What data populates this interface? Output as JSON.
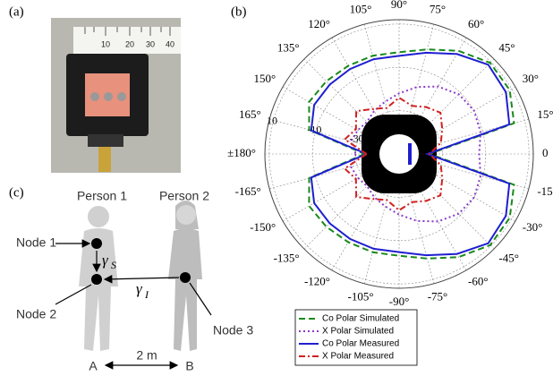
{
  "panel_labels": [
    "(a)",
    "(b)",
    "(c)"
  ],
  "photo": {
    "ruler_labels": [
      "10",
      "20",
      "30",
      "40"
    ]
  },
  "chart_data": {
    "type": "polar",
    "theta": [
      -180,
      -165,
      -150,
      -135,
      -120,
      -105,
      -90,
      -75,
      -60,
      -45,
      -30,
      -15,
      0,
      15,
      30,
      45,
      60,
      75,
      90,
      105,
      120,
      135,
      150,
      165,
      180
    ],
    "rlim": [
      -50,
      12
    ],
    "rticks": [
      -30,
      -10,
      10
    ],
    "thetaticks": [
      0,
      {
        "value": 15,
        "label": "15°"
      },
      {
        "value": 30,
        "label": "30°"
      },
      {
        "value": 45,
        "label": "45°"
      },
      {
        "value": 60,
        "label": "60°"
      },
      {
        "value": 75,
        "label": "75°"
      },
      {
        "value": 90,
        "label": "90°"
      },
      {
        "value": 105,
        "label": "105°"
      },
      {
        "value": 120,
        "label": "120°"
      },
      {
        "value": 135,
        "label": "135°"
      },
      {
        "value": 150,
        "label": "150°"
      },
      {
        "value": 165,
        "label": "165°"
      },
      {
        "value": 180,
        "label": "±180°"
      },
      {
        "value": -165,
        "label": "-165°"
      },
      {
        "value": -150,
        "label": "-150°"
      },
      {
        "value": -135,
        "label": "-135°"
      },
      {
        "value": -120,
        "label": "-120°"
      },
      {
        "value": -105,
        "label": "-105°"
      },
      {
        "value": -90,
        "label": "-90°"
      },
      {
        "value": -75,
        "label": "-75°"
      },
      {
        "value": -60,
        "label": "-60°"
      },
      {
        "value": -45,
        "label": "-45°"
      },
      {
        "value": -30,
        "label": "-30°"
      },
      {
        "value": -15,
        "label": "-15°"
      }
    ],
    "grid": true,
    "legend": "bottom",
    "series": [
      {
        "name": "Co Polar Simulated",
        "color": "#1a8a1a",
        "linestyle": "dashed",
        "values": [
          -34,
          -7,
          -2,
          -2.5,
          -3,
          -3,
          -3,
          0,
          5,
          9.5,
          9,
          5,
          -36,
          5,
          9,
          9.5,
          5,
          0,
          -3,
          -3,
          -3,
          -2.5,
          -2,
          -7,
          -34
        ]
      },
      {
        "name": "X Polar Simulated",
        "color": "#8a3acb",
        "linestyle": "dotted",
        "values": [
          -30,
          -27,
          -28,
          -29,
          -27,
          -25,
          -22,
          -18,
          -14,
          -11,
          -10,
          -11,
          -13,
          -11,
          -10,
          -11,
          -14,
          -18,
          -22,
          -25,
          -27,
          -29,
          -28,
          -27,
          -30
        ]
      },
      {
        "name": "Co Polar Measured",
        "color": "#1f1fd0",
        "linestyle": "solid",
        "values": [
          -35,
          -8,
          -4.7,
          -4.7,
          -4.7,
          -4.7,
          -4.7,
          -1.6,
          3.3,
          8.3,
          7,
          2.7,
          -37,
          2.7,
          7,
          8.3,
          3.3,
          -1.6,
          -4.7,
          -4.7,
          -4.7,
          -4.7,
          -4.7,
          -8,
          -35
        ]
      },
      {
        "name": "X Polar Measured",
        "color": "#d02020",
        "linestyle": "dashdot",
        "values": [
          -35,
          -24,
          -27,
          -22,
          -26,
          -28,
          -24,
          -27,
          -25,
          -23,
          -27,
          -30,
          -36,
          -30,
          -27,
          -23,
          -25,
          -27,
          -24,
          -28,
          -26,
          -22,
          -27,
          -24,
          -35
        ]
      }
    ]
  },
  "diagram": {
    "person_1": "Person 1",
    "person_2": "Person 2",
    "node_1": "Node 1",
    "node_2": "Node 2",
    "node_3": "Node 3",
    "gamma_s": {
      "symbol": "γ",
      "subscript": "S"
    },
    "gamma_i": {
      "symbol": "γ",
      "subscript": "I"
    },
    "point_a": "A",
    "point_b": "B",
    "distance": "2 m"
  }
}
